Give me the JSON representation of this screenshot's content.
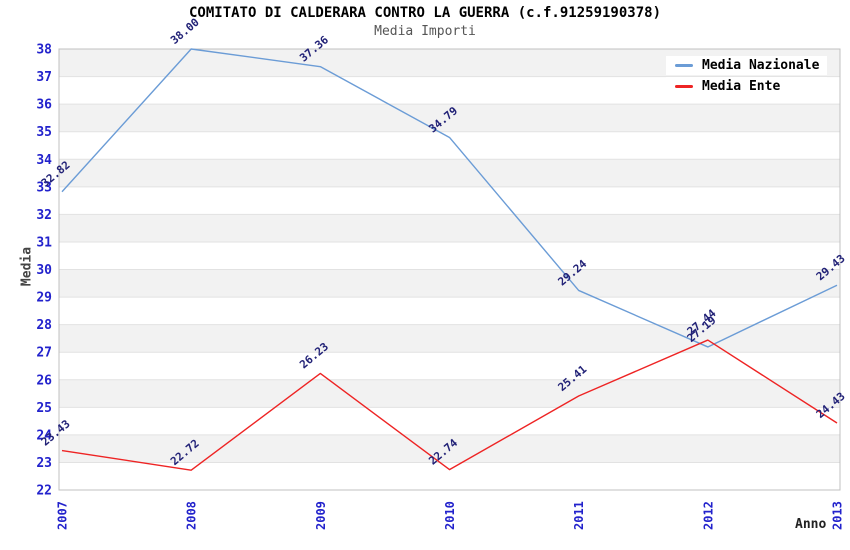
{
  "chart_data": {
    "type": "line",
    "title": "COMITATO DI CALDERARA CONTRO LA GUERRA (c.f.91259190378)",
    "subtitle": "Media Importi",
    "xlabel": "Anno",
    "ylabel": "Media",
    "x_categories": [
      "2007",
      "2008",
      "2009",
      "2010",
      "2011",
      "2012",
      "2013"
    ],
    "series": [
      {
        "name": "Media Nazionale",
        "color": "#6b9cd6",
        "values": [
          32.82,
          38.0,
          37.36,
          34.79,
          29.24,
          27.19,
          29.43
        ]
      },
      {
        "name": "Media Ente",
        "color": "#ee2424",
        "values": [
          23.43,
          22.72,
          26.23,
          22.74,
          25.41,
          27.44,
          24.43
        ]
      }
    ],
    "ylim": [
      22,
      38
    ],
    "ytick_step": 1,
    "grid": true,
    "alternating_bands": true,
    "legend_position": "top-right",
    "label_decimals": 2,
    "styles": {
      "band_fill": "#f2f2f2",
      "grid_color": "#e2e2e2",
      "border_color": "#c0c0c0",
      "tick_label_color": "#2222cc",
      "point_label_color": "#222277",
      "background": "#ffffff"
    }
  }
}
